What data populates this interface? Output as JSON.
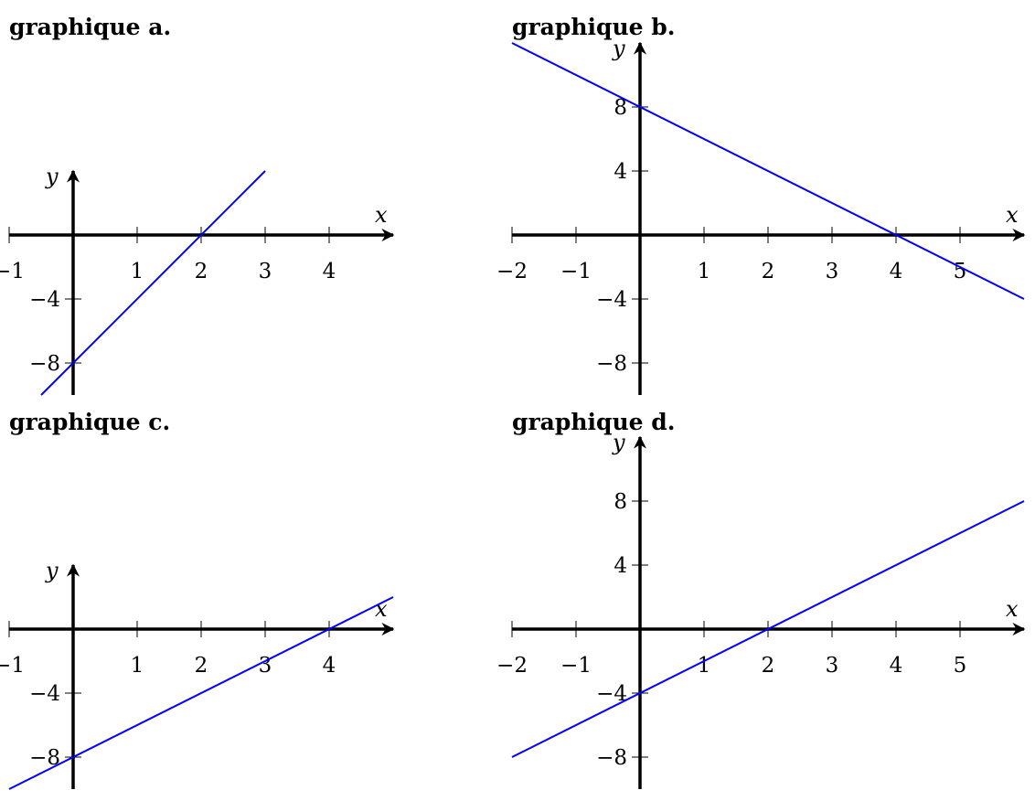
{
  "chart_data": [
    {
      "type": "line",
      "title": "graphique a.",
      "x_label": "x",
      "y_label": "y",
      "x": [
        -0.5,
        3
      ],
      "series": [
        {
          "color": "#0000ff",
          "values": [
            -10,
            4
          ]
        }
      ],
      "xlim": [
        -1,
        5
      ],
      "ylim": [
        -10,
        4
      ],
      "xticks": [
        {
          "value": -1,
          "label": "−1"
        },
        1,
        2,
        3,
        4
      ],
      "yticks": [
        {
          "value": -8,
          "label": "−8"
        },
        {
          "value": -4,
          "label": "−4"
        }
      ]
    },
    {
      "type": "line",
      "title": "graphique b.",
      "x_label": "x",
      "y_label": "y",
      "x": [
        -2,
        6
      ],
      "series": [
        {
          "color": "#0000ff",
          "values": [
            12,
            -4
          ]
        }
      ],
      "xlim": [
        -2,
        6
      ],
      "ylim": [
        -10,
        12
      ],
      "xticks": [
        {
          "value": -2,
          "label": "−2"
        },
        {
          "value": -1,
          "label": "−1"
        },
        1,
        2,
        3,
        4,
        5
      ],
      "yticks": [
        {
          "value": -8,
          "label": "−8"
        },
        {
          "value": -4,
          "label": "−4"
        },
        4,
        8
      ]
    },
    {
      "type": "line",
      "title": "graphique c.",
      "x_label": "x",
      "y_label": "y",
      "x": [
        -1,
        5
      ],
      "series": [
        {
          "color": "#0000ff",
          "values": [
            -10,
            2
          ]
        }
      ],
      "xlim": [
        -1,
        5
      ],
      "ylim": [
        -10,
        4
      ],
      "xticks": [
        {
          "value": -1,
          "label": "−1"
        },
        1,
        2,
        3,
        4
      ],
      "yticks": [
        {
          "value": -8,
          "label": "−8"
        },
        {
          "value": -4,
          "label": "−4"
        }
      ]
    },
    {
      "type": "line",
      "title": "graphique d.",
      "x_label": "x",
      "y_label": "y",
      "x": [
        -2,
        6
      ],
      "series": [
        {
          "color": "#0000ff",
          "values": [
            -8,
            8
          ]
        }
      ],
      "xlim": [
        -2,
        6
      ],
      "ylim": [
        -10,
        12
      ],
      "xticks": [
        {
          "value": -2,
          "label": "−2"
        },
        {
          "value": -1,
          "label": "−1"
        },
        1,
        2,
        3,
        4,
        5
      ],
      "yticks": [
        {
          "value": -8,
          "label": "−8"
        },
        {
          "value": -4,
          "label": "−4"
        },
        4,
        8
      ]
    }
  ]
}
